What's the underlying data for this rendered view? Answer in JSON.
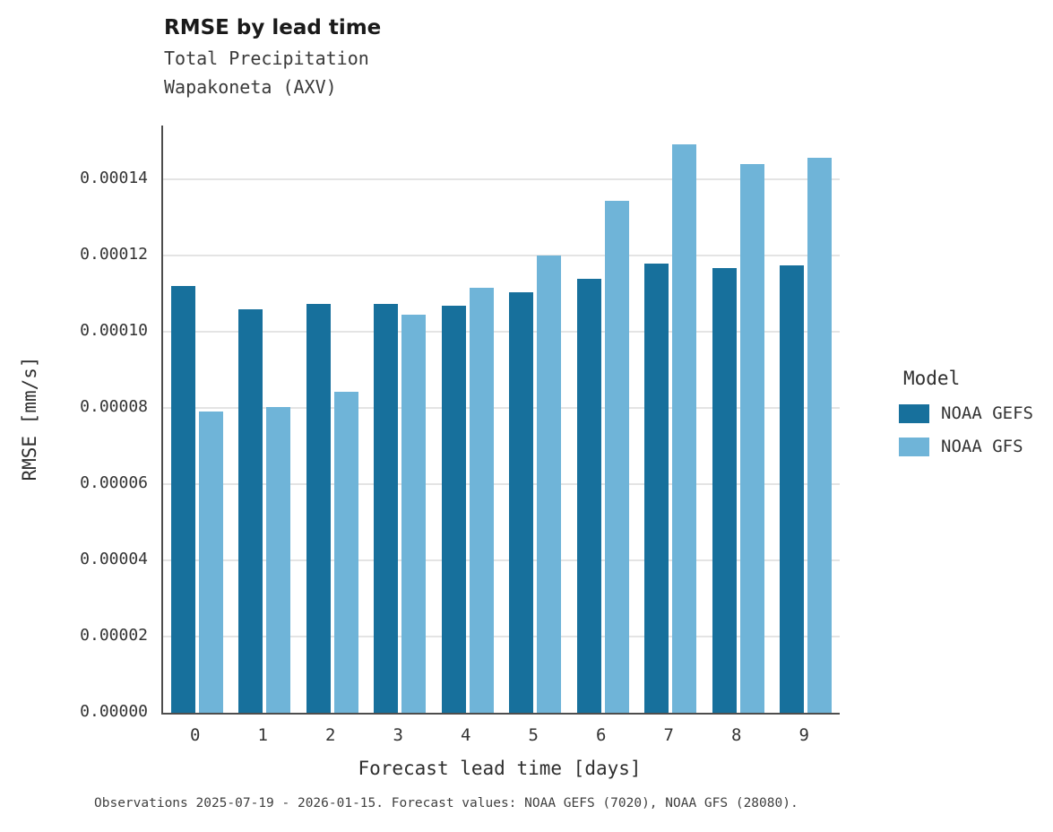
{
  "chart_data": {
    "type": "bar",
    "title": "RMSE by lead time",
    "subtitle": [
      "Total Precipitation",
      "Wapakoneta (AXV)"
    ],
    "xlabel": "Forecast lead time [days]",
    "ylabel": "RMSE [mm/s]",
    "categories": [
      "0",
      "1",
      "2",
      "3",
      "4",
      "5",
      "6",
      "7",
      "8",
      "9"
    ],
    "series": [
      {
        "name": "NOAA GEFS",
        "color": "#17709c",
        "values": [
          0.000112,
          0.0001058,
          0.0001073,
          0.0001073,
          0.0001068,
          0.0001104,
          0.0001139,
          0.0001179,
          0.0001168,
          0.0001173
        ]
      },
      {
        "name": "NOAA GFS",
        "color": "#6fb4d8",
        "values": [
          7.91e-05,
          8.02e-05,
          8.42e-05,
          0.0001045,
          0.0001115,
          0.00012,
          0.0001344,
          0.0001491,
          0.0001441,
          0.0001456
        ]
      }
    ],
    "yticks": [
      0,
      2e-05,
      4e-05,
      6e-05,
      8e-05,
      0.0001,
      0.00012,
      0.00014
    ],
    "ytick_labels": [
      "0.00000",
      "0.00002",
      "0.00004",
      "0.00006",
      "0.00008",
      "0.00010",
      "0.00012",
      "0.00014"
    ],
    "ylim": [
      0,
      0.00015412
    ],
    "grid": true,
    "legend_title": "Model",
    "legend_position": "right",
    "caption": "Observations 2025-07-19 - 2026-01-15. Forecast values: NOAA GEFS (7020), NOAA GFS (28080)."
  }
}
